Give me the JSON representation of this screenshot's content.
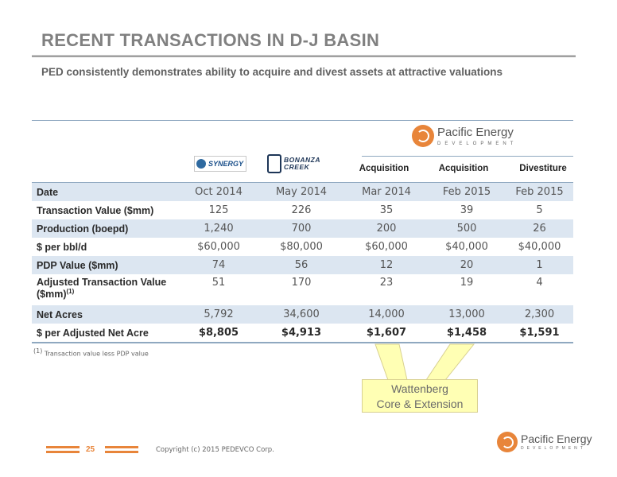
{
  "slide": {
    "title": "RECENT TRANSACTIONS IN D-J BASIN",
    "subtitle": "PED consistently demonstrates ability to acquire and divest assets at attractive valuations"
  },
  "pe_logo": {
    "name": "Pacific Energy",
    "tagline": "DEVELOPMENT"
  },
  "company_logos": {
    "synergy": {
      "text": "SYNERGY",
      "color": "#1a4f8a"
    },
    "bonanza": {
      "line1": "BONANZA",
      "line2": "CREEK",
      "color": "#1d3557"
    }
  },
  "table": {
    "column_headers": [
      "Acquisition",
      "Acquisition",
      "Divestiture"
    ],
    "rows": [
      {
        "label": "Date",
        "values": [
          "Oct 2014",
          "May 2014",
          "Mar 2014",
          "Feb 2015",
          "Feb 2015"
        ]
      },
      {
        "label": "Transaction Value ($mm)",
        "values": [
          "125",
          "226",
          "35",
          "39",
          "5"
        ]
      },
      {
        "label": "Production (boepd)",
        "values": [
          "1,240",
          "700",
          "200",
          "500",
          "26"
        ]
      },
      {
        "label": "$ per bbl/d",
        "values": [
          "$60,000",
          "$80,000",
          "$60,000",
          "$40,000",
          "$40,000"
        ]
      },
      {
        "label": "PDP Value ($mm)",
        "values": [
          "74",
          "56",
          "12",
          "20",
          "1"
        ]
      },
      {
        "label": "Adjusted Transaction Value ($mm)",
        "label_sup": "(1)",
        "values": [
          "51",
          "170",
          "23",
          "19",
          "4"
        ]
      },
      {
        "label": "Net Acres",
        "values": [
          "5,792",
          "34,600",
          "14,000",
          "13,000",
          "2,300"
        ]
      },
      {
        "label": "$ per Adjusted Net Acre",
        "values": [
          "$8,805",
          "$4,913",
          "$1,607",
          "$1,458",
          "$1,591"
        ]
      }
    ]
  },
  "footnote": {
    "marker": "(1)",
    "text": "Transaction value less PDP value"
  },
  "callout": {
    "line1": "Wattenberg",
    "line2": "Core & Extension"
  },
  "footer": {
    "page": "25",
    "copyright": "Copyright (c) 2015 PEDEVCO Corp."
  },
  "colors": {
    "accent": "#e8853a",
    "table_shade": "#dce6f1",
    "callout_bg": "#ffffb4"
  }
}
